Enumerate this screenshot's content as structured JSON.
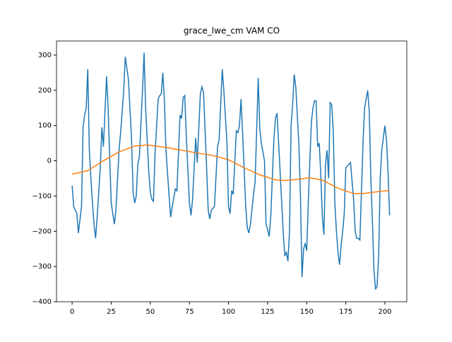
{
  "chart_data": {
    "type": "line",
    "title": "grace_lwe_cm VAM CO",
    "xlim": [
      -10,
      214
    ],
    "ylim": [
      -400,
      340
    ],
    "xticks": [
      0,
      25,
      50,
      75,
      100,
      125,
      150,
      175,
      200
    ],
    "yticks": [
      {
        "value": -400,
        "label": "−400"
      },
      {
        "value": -300,
        "label": "−300"
      },
      {
        "value": -200,
        "label": "−200"
      },
      {
        "value": -100,
        "label": "−100"
      },
      0,
      100,
      200,
      300
    ],
    "series": [
      {
        "color": "#1f77b4",
        "x": [
          0,
          1,
          3,
          4,
          6,
          7,
          8,
          9,
          10,
          11,
          12,
          13,
          14,
          15,
          16,
          18,
          19,
          20,
          22,
          23,
          24,
          25,
          27,
          28,
          30,
          31,
          33,
          34,
          36,
          38,
          39,
          40,
          41,
          42,
          43,
          45,
          46,
          47,
          49,
          50,
          51,
          52,
          53,
          55,
          56,
          57,
          58,
          59,
          60,
          62,
          63,
          64,
          66,
          67,
          69,
          70,
          71,
          72,
          73,
          75,
          76,
          77,
          79,
          80,
          82,
          83,
          84,
          86,
          87,
          88,
          89,
          91,
          93,
          94,
          96,
          97,
          99,
          100,
          101,
          102,
          103,
          105,
          106,
          107,
          108,
          109,
          111,
          112,
          113,
          114,
          116,
          117,
          119,
          120,
          121,
          123,
          124,
          125,
          126,
          127,
          129,
          130,
          131,
          132,
          134,
          135,
          136,
          137,
          138,
          139,
          140,
          141,
          142,
          143,
          145,
          146,
          147,
          148,
          149,
          150,
          151,
          152,
          153,
          154,
          155,
          156,
          157,
          158,
          159,
          160,
          161,
          162,
          163,
          164,
          165,
          166,
          167,
          168,
          169,
          170,
          171,
          172,
          173,
          174,
          175,
          178,
          180,
          181,
          182,
          183,
          184,
          186,
          187,
          189,
          190,
          191,
          192,
          193,
          194,
          195,
          196,
          197,
          198,
          200,
          201,
          202,
          203
        ],
        "values": [
          -70,
          -130,
          -150,
          -205,
          -130,
          95,
          130,
          150,
          260,
          30,
          -50,
          -120,
          -180,
          -220,
          -160,
          -20,
          95,
          40,
          240,
          150,
          10,
          -120,
          -180,
          -140,
          30,
          80,
          200,
          295,
          230,
          60,
          -90,
          -120,
          -100,
          -10,
          10,
          200,
          307,
          150,
          -30,
          -90,
          -110,
          -115,
          20,
          175,
          185,
          190,
          250,
          170,
          30,
          -100,
          -160,
          -130,
          -80,
          -85,
          130,
          120,
          180,
          185,
          70,
          -120,
          -155,
          -110,
          65,
          -5,
          190,
          210,
          195,
          -20,
          -140,
          -165,
          -140,
          -130,
          40,
          60,
          260,
          200,
          50,
          -130,
          -150,
          -85,
          -95,
          85,
          80,
          100,
          175,
          80,
          -130,
          -190,
          -205,
          -180,
          -95,
          -60,
          235,
          90,
          50,
          0,
          -180,
          -195,
          -215,
          -160,
          60,
          120,
          135,
          55,
          -120,
          -205,
          -270,
          -260,
          -285,
          -200,
          100,
          160,
          245,
          210,
          45,
          -100,
          -330,
          -250,
          -235,
          -255,
          -120,
          0,
          110,
          150,
          170,
          170,
          40,
          50,
          -40,
          -160,
          -210,
          -10,
          30,
          -50,
          165,
          160,
          80,
          -120,
          -200,
          -260,
          -295,
          -240,
          -200,
          -150,
          -20,
          -5,
          -110,
          -200,
          -220,
          -220,
          -225,
          50,
          150,
          200,
          140,
          -50,
          -170,
          -310,
          -365,
          -355,
          -270,
          -50,
          30,
          100,
          60,
          -30,
          -155
        ]
      },
      {
        "color": "#ff7f0e",
        "x": [
          0,
          10,
          20,
          30,
          40,
          48,
          60,
          80,
          90,
          100,
          110,
          120,
          130,
          136,
          145,
          152,
          160,
          170,
          180,
          186,
          195,
          203
        ],
        "values": [
          -38,
          -28,
          0,
          25,
          42,
          45,
          38,
          22,
          15,
          3,
          -20,
          -40,
          -54,
          -56,
          -52,
          -48,
          -55,
          -78,
          -93,
          -93,
          -88,
          -84
        ]
      }
    ]
  }
}
